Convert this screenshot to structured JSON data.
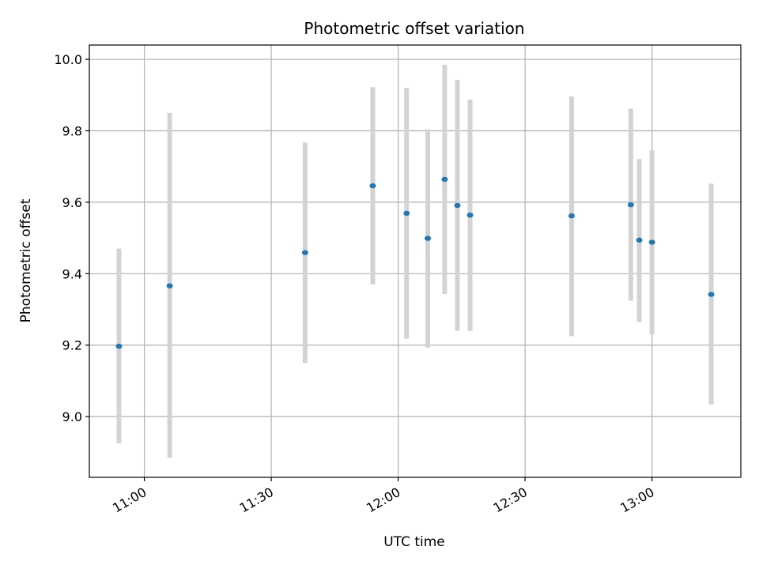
{
  "chart_data": {
    "type": "scatter",
    "title": "Photometric offset variation",
    "xlabel": "UTC time",
    "ylabel": "Photometric offset",
    "x_axis_type": "time",
    "xlim": [
      "10:47",
      "13:21"
    ],
    "ylim": [
      8.83,
      10.04
    ],
    "grid": true,
    "x_ticks": [
      "11:00",
      "11:30",
      "12:00",
      "12:30",
      "13:00"
    ],
    "y_ticks": [
      "9.0",
      "9.2",
      "9.4",
      "9.6",
      "9.8",
      "10.0"
    ],
    "point_color": "#1f77b4",
    "errorbar_color": "#d3d3d3",
    "points": [
      {
        "x": "10:54",
        "y": 9.197,
        "low": 8.925,
        "high": 9.47
      },
      {
        "x": "11:06",
        "y": 9.366,
        "low": 8.885,
        "high": 9.85
      },
      {
        "x": "11:38",
        "y": 9.459,
        "low": 9.15,
        "high": 9.767
      },
      {
        "x": "11:54",
        "y": 9.646,
        "low": 9.37,
        "high": 9.922
      },
      {
        "x": "12:02",
        "y": 9.569,
        "low": 9.218,
        "high": 9.92
      },
      {
        "x": "12:07",
        "y": 9.499,
        "low": 9.193,
        "high": 9.804
      },
      {
        "x": "12:11",
        "y": 9.664,
        "low": 9.343,
        "high": 9.985
      },
      {
        "x": "12:14",
        "y": 9.591,
        "low": 9.24,
        "high": 9.943
      },
      {
        "x": "12:17",
        "y": 9.564,
        "low": 9.24,
        "high": 9.887
      },
      {
        "x": "12:41",
        "y": 9.562,
        "low": 9.225,
        "high": 9.896
      },
      {
        "x": "12:55",
        "y": 9.593,
        "low": 9.324,
        "high": 9.862
      },
      {
        "x": "12:57",
        "y": 9.494,
        "low": 9.265,
        "high": 9.721
      },
      {
        "x": "13:00",
        "y": 9.488,
        "low": 9.23,
        "high": 9.745
      },
      {
        "x": "13:14",
        "y": 9.342,
        "low": 9.034,
        "high": 9.652
      }
    ]
  }
}
